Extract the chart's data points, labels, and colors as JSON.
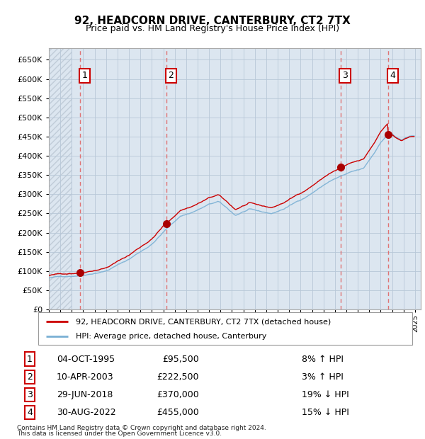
{
  "title": "92, HEADCORN DRIVE, CANTERBURY, CT2 7TX",
  "subtitle": "Price paid vs. HM Land Registry's House Price Index (HPI)",
  "ytick_values": [
    0,
    50000,
    100000,
    150000,
    200000,
    250000,
    300000,
    350000,
    400000,
    450000,
    500000,
    550000,
    600000,
    650000
  ],
  "ylim": [
    0,
    680000
  ],
  "xmin": 1993.0,
  "xmax": 2025.5,
  "transactions": [
    {
      "num": 1,
      "date": "04-OCT-1995",
      "price": 95500,
      "year": 1995.75,
      "pct": "8%",
      "dir": "↑"
    },
    {
      "num": 2,
      "date": "10-APR-2003",
      "price": 222500,
      "year": 2003.27,
      "pct": "3%",
      "dir": "↑"
    },
    {
      "num": 3,
      "date": "29-JUN-2018",
      "price": 370000,
      "year": 2018.49,
      "pct": "19%",
      "dir": "↓"
    },
    {
      "num": 4,
      "date": "30-AUG-2022",
      "price": 455000,
      "year": 2022.66,
      "pct": "15%",
      "dir": "↓"
    }
  ],
  "hpi_line_color": "#7ab0d4",
  "sale_line_color": "#cc0000",
  "sale_dot_color": "#aa0000",
  "dashed_line_color": "#e06060",
  "bg_color": "#dce6f0",
  "hatch_color": "#c8d4e4",
  "grid_color": "#b8c8d8",
  "legend_sale_label": "92, HEADCORN DRIVE, CANTERBURY, CT2 7TX (detached house)",
  "legend_hpi_label": "HPI: Average price, detached house, Canterbury",
  "footer1": "Contains HM Land Registry data © Crown copyright and database right 2024.",
  "footer2": "This data is licensed under the Open Government Licence v3.0.",
  "hpi_index_base": 88700
}
